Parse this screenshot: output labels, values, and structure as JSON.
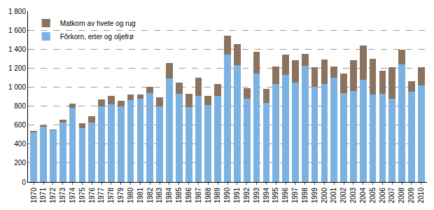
{
  "chart_data": {
    "type": "bar",
    "stacked": true,
    "grid": true,
    "legend": "top-left",
    "categories": [
      "1970",
      "1971",
      "1972",
      "1973",
      "1974",
      "1975",
      "1976",
      "1977",
      "1978",
      "1979",
      "1980",
      "1981",
      "1982",
      "1983",
      "1984",
      "1985",
      "1986",
      "1987",
      "1988",
      "1989",
      "1990",
      "1991",
      "1992",
      "1993",
      "1994",
      "1995",
      "1996",
      "1997",
      "1998",
      "1999",
      "2000",
      "2001",
      "2002",
      "2003",
      "2004",
      "2005",
      "2006",
      "2007",
      "2008",
      "2009",
      "2010"
    ],
    "series": [
      {
        "name": "Fôrkorn, erter og oljefrø",
        "color": "#7cb2e2",
        "values": [
          525,
          585,
          545,
          630,
          780,
          570,
          630,
          800,
          820,
          800,
          860,
          880,
          940,
          800,
          1095,
          930,
          790,
          910,
          810,
          910,
          1345,
          1230,
          880,
          1140,
          830,
          1035,
          1130,
          1045,
          1225,
          1005,
          1035,
          1100,
          935,
          960,
          1080,
          920,
          930,
          880,
          1240,
          955,
          1020
        ]
      },
      {
        "name": "Matkorn av hvete og rug",
        "color": "#8a7460",
        "values": [
          10,
          10,
          10,
          30,
          45,
          50,
          65,
          70,
          85,
          55,
          60,
          40,
          60,
          90,
          160,
          115,
          140,
          190,
          100,
          125,
          200,
          225,
          110,
          235,
          150,
          185,
          210,
          240,
          125,
          205,
          255,
          120,
          205,
          320,
          360,
          380,
          240,
          330,
          155,
          105,
          190
        ]
      }
    ],
    "ylim": [
      0,
      1800
    ],
    "yticks": [
      0,
      200,
      400,
      600,
      800,
      {
        "value": 1000,
        "label": "1 000"
      },
      {
        "value": 1200,
        "label": "1 200"
      },
      {
        "value": 1400,
        "label": "1 400"
      },
      {
        "value": 1600,
        "label": "1 600"
      },
      {
        "value": 1800,
        "label": "1 800"
      }
    ]
  }
}
